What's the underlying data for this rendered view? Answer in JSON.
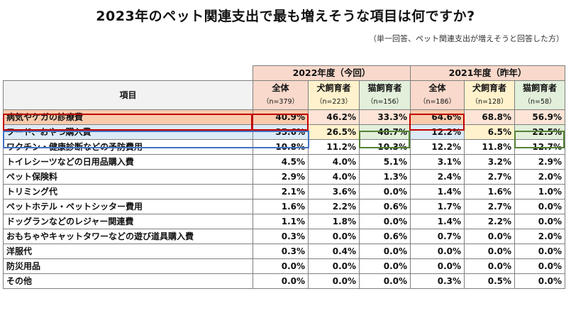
{
  "title": "2023年のペット関連支出で最も増えそうな項目は何ですか?",
  "subtitle": "（単一回答、ペット関連支出が増えそうと回答した方）",
  "chart_data": {
    "type": "table",
    "item_header": "項目",
    "groups": [
      {
        "label": "2022年度（今回）",
        "columns": [
          {
            "label": "全体",
            "n": "（n=379）"
          },
          {
            "label": "犬飼育者",
            "n": "（n=223）"
          },
          {
            "label": "猫飼育者",
            "n": "（n=156）"
          }
        ]
      },
      {
        "label": "2021年度（昨年）",
        "columns": [
          {
            "label": "全体",
            "n": "（n=186）"
          },
          {
            "label": "犬飼育者",
            "n": "（n=128）"
          },
          {
            "label": "猫飼育者",
            "n": "（n=58）"
          }
        ]
      }
    ],
    "rows": [
      {
        "label": "病気やケガの診療費",
        "values": [
          "40.9%",
          "46.2%",
          "33.3%",
          "64.6%",
          "68.8%",
          "56.9%"
        ]
      },
      {
        "label": "フード、おやつ購入費",
        "values": [
          "35.6%",
          "26.5%",
          "48.7%",
          "12.2%",
          "6.5%",
          "22.5%"
        ]
      },
      {
        "label": "ワクチン・健康診断などの予防費用",
        "values": [
          "10.8%",
          "11.2%",
          "10.3%",
          "12.2%",
          "11.8%",
          "12.7%"
        ]
      },
      {
        "label": "トイレシーツなどの日用品購入費",
        "values": [
          "4.5%",
          "4.0%",
          "5.1%",
          "3.1%",
          "3.2%",
          "2.9%"
        ]
      },
      {
        "label": "ペット保険料",
        "values": [
          "2.9%",
          "4.0%",
          "1.3%",
          "2.4%",
          "2.7%",
          "2.0%"
        ]
      },
      {
        "label": "トリミング代",
        "values": [
          "2.1%",
          "3.6%",
          "0.0%",
          "1.4%",
          "1.6%",
          "1.0%"
        ]
      },
      {
        "label": "ペットホテル・ペットシッター費用",
        "values": [
          "1.6%",
          "2.2%",
          "0.6%",
          "1.7%",
          "2.7%",
          "0.0%"
        ]
      },
      {
        "label": "ドッグランなどのレジャー関連費",
        "values": [
          "1.1%",
          "1.8%",
          "0.0%",
          "1.4%",
          "2.2%",
          "0.0%"
        ]
      },
      {
        "label": "おもちゃやキャットタワーなどの遊び道具購入費",
        "values": [
          "0.3%",
          "0.0%",
          "0.6%",
          "0.7%",
          "0.0%",
          "2.0%"
        ]
      },
      {
        "label": "洋服代",
        "values": [
          "0.3%",
          "0.4%",
          "0.0%",
          "0.0%",
          "0.0%",
          "0.0%"
        ]
      },
      {
        "label": "防災用品",
        "values": [
          "0.0%",
          "0.0%",
          "0.0%",
          "0.0%",
          "0.0%",
          "0.0%"
        ]
      },
      {
        "label": "その他",
        "values": [
          "0.0%",
          "0.0%",
          "0.0%",
          "0.3%",
          "0.5%",
          "0.0%"
        ]
      }
    ],
    "colors": {
      "header_peach": "#f8d9cb",
      "dog_yellow": "#fff2cc",
      "cat_green": "#e2efda",
      "row_sick": "#f8cbad",
      "row_food": "#ddebf7",
      "highlight_red": "#c00000",
      "highlight_blue": "#4472c4",
      "highlight_green": "#548235"
    }
  }
}
